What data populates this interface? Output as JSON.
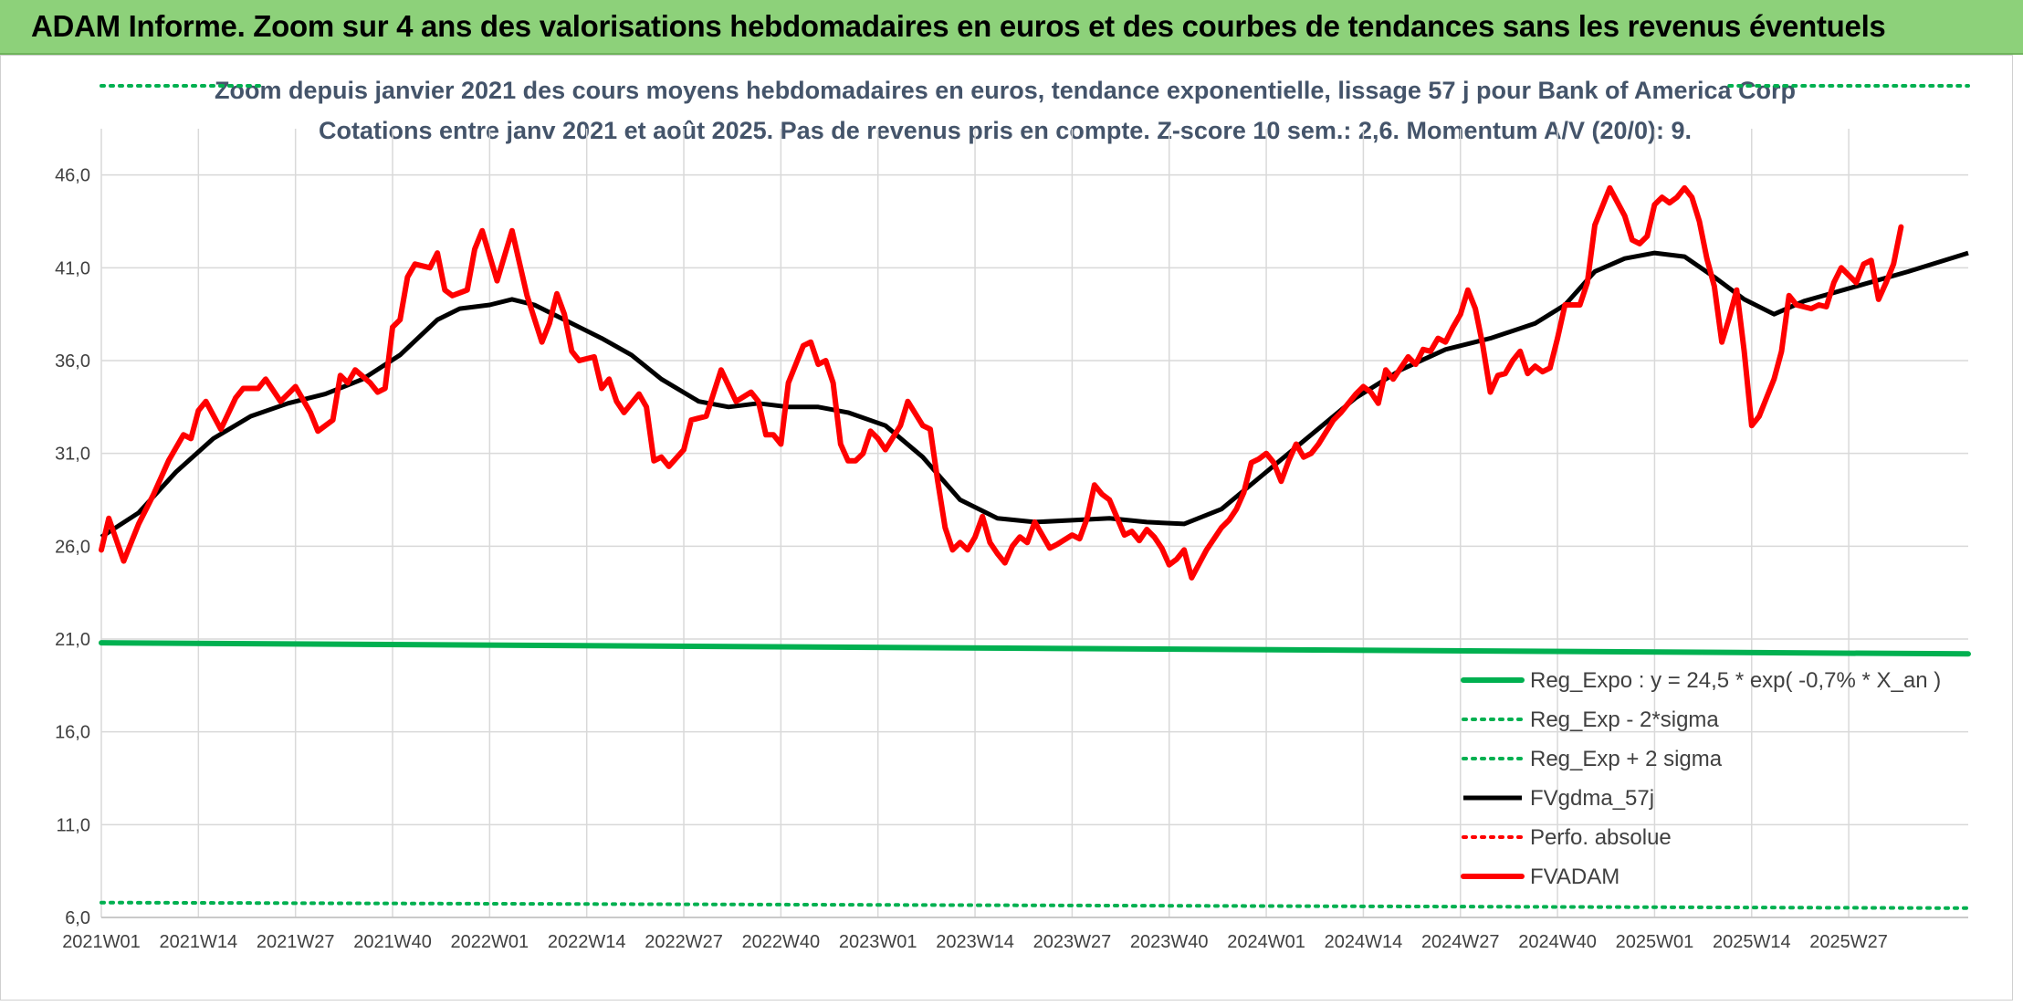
{
  "banner": {
    "title": "ADAM Informe. Zoom sur 4 ans des valorisations hebdomadaires en euros et des courbes de tendances sans les revenus éventuels"
  },
  "chart_data": {
    "type": "line",
    "title": "Zoom depuis janvier 2021 des cours moyens hebdomadaires en euros, tendance exponentielle, lissage 57 j pour Bank of America Corp",
    "subtitle": "Cotations entre janv 2021 et août 2025. Pas de revenus pris en compte. Z-score 10 sem.: 2,6. Momentum A/V (20/0): 9.",
    "xlabel": "",
    "ylabel": "",
    "ylim": [
      6,
      48
    ],
    "yticks": [
      "6,0",
      "11,0",
      "16,0",
      "21,0",
      "26,0",
      "31,0",
      "36,0",
      "41,0",
      "46,0"
    ],
    "ytick_values": [
      6,
      11,
      16,
      21,
      26,
      31,
      36,
      41,
      46
    ],
    "x_start_index": 0,
    "x_end_index": 250,
    "xticks": [
      "2021W01",
      "2021W14",
      "2021W27",
      "2021W40",
      "2022W01",
      "2022W14",
      "2022W27",
      "2022W40",
      "2023W01",
      "2023W14",
      "2023W27",
      "2023W40",
      "2024W01",
      "2024W14",
      "2024W27",
      "2024W40",
      "2025W01",
      "2025W14",
      "2025W27"
    ],
    "grid": true,
    "legend_position": "bottom-right",
    "series": [
      {
        "name": "Reg_Expo : y = 24,5 * exp( -0,7% *  X_an )",
        "color": "#00b050",
        "style": "solid-thick",
        "points": [
          [
            0,
            20.8
          ],
          [
            250,
            20.2
          ]
        ]
      },
      {
        "name": "Reg_Exp - 2*sigma",
        "color": "#00b050",
        "style": "dotted",
        "points": [
          [
            0,
            6.8
          ],
          [
            250,
            6.5
          ]
        ]
      },
      {
        "name": "Reg_Exp + 2 sigma",
        "color": "#00b050",
        "style": "dotted",
        "points": [
          [
            0,
            49.5
          ],
          [
            22,
            49.5
          ],
          [
            218,
            49.5
          ],
          [
            250,
            49.5
          ]
        ]
      },
      {
        "name": "FVgdma_57j",
        "color": "#000000",
        "style": "solid",
        "points": [
          [
            0,
            26.5
          ],
          [
            5,
            27.8
          ],
          [
            10,
            30.0
          ],
          [
            15,
            31.8
          ],
          [
            20,
            33.0
          ],
          [
            25,
            33.7
          ],
          [
            30,
            34.2
          ],
          [
            35,
            35.0
          ],
          [
            40,
            36.3
          ],
          [
            45,
            38.2
          ],
          [
            48,
            38.8
          ],
          [
            52,
            39.0
          ],
          [
            55,
            39.3
          ],
          [
            58,
            39.0
          ],
          [
            62,
            38.2
          ],
          [
            67,
            37.2
          ],
          [
            71,
            36.3
          ],
          [
            75,
            35.0
          ],
          [
            80,
            33.8
          ],
          [
            84,
            33.5
          ],
          [
            88,
            33.7
          ],
          [
            92,
            33.5
          ],
          [
            96,
            33.5
          ],
          [
            100,
            33.2
          ],
          [
            105,
            32.5
          ],
          [
            110,
            30.8
          ],
          [
            115,
            28.5
          ],
          [
            120,
            27.5
          ],
          [
            125,
            27.3
          ],
          [
            130,
            27.4
          ],
          [
            135,
            27.5
          ],
          [
            140,
            27.3
          ],
          [
            145,
            27.2
          ],
          [
            150,
            28.0
          ],
          [
            156,
            30.0
          ],
          [
            162,
            32.0
          ],
          [
            168,
            34.0
          ],
          [
            174,
            35.5
          ],
          [
            180,
            36.6
          ],
          [
            186,
            37.2
          ],
          [
            192,
            38.0
          ],
          [
            196,
            39.0
          ],
          [
            200,
            40.8
          ],
          [
            204,
            41.5
          ],
          [
            208,
            41.8
          ],
          [
            212,
            41.6
          ],
          [
            216,
            40.5
          ],
          [
            220,
            39.3
          ],
          [
            224,
            38.5
          ],
          [
            228,
            39.2
          ],
          [
            235,
            40.0
          ],
          [
            242,
            40.8
          ],
          [
            250,
            41.8
          ]
        ]
      },
      {
        "name": "Perfo. absolue",
        "color": "#ff0000",
        "style": "dotted",
        "points": []
      },
      {
        "name": "FVADAM",
        "color": "#ff0000",
        "style": "solid-thick",
        "points": [
          [
            0,
            25.8
          ],
          [
            1,
            27.5
          ],
          [
            3,
            25.2
          ],
          [
            5,
            27.2
          ],
          [
            7,
            28.8
          ],
          [
            9,
            30.6
          ],
          [
            11,
            32.0
          ],
          [
            12,
            31.8
          ],
          [
            13,
            33.3
          ],
          [
            14,
            33.8
          ],
          [
            16,
            32.3
          ],
          [
            18,
            34.0
          ],
          [
            19,
            34.5
          ],
          [
            21,
            34.5
          ],
          [
            22,
            35.0
          ],
          [
            24,
            33.8
          ],
          [
            26,
            34.6
          ],
          [
            28,
            33.2
          ],
          [
            29,
            32.2
          ],
          [
            31,
            32.8
          ],
          [
            32,
            35.2
          ],
          [
            33,
            34.8
          ],
          [
            34,
            35.5
          ],
          [
            36,
            34.8
          ],
          [
            37,
            34.3
          ],
          [
            38,
            34.5
          ],
          [
            39,
            37.8
          ],
          [
            40,
            38.2
          ],
          [
            41,
            40.5
          ],
          [
            42,
            41.2
          ],
          [
            44,
            41.0
          ],
          [
            45,
            41.8
          ],
          [
            46,
            39.8
          ],
          [
            47,
            39.5
          ],
          [
            49,
            39.8
          ],
          [
            50,
            42.0
          ],
          [
            51,
            43.0
          ],
          [
            53,
            40.3
          ],
          [
            55,
            43.0
          ],
          [
            57,
            39.5
          ],
          [
            59,
            37.0
          ],
          [
            60,
            38.0
          ],
          [
            61,
            39.6
          ],
          [
            62,
            38.5
          ],
          [
            63,
            36.5
          ],
          [
            64,
            36.0
          ],
          [
            66,
            36.2
          ],
          [
            67,
            34.5
          ],
          [
            68,
            35.0
          ],
          [
            69,
            33.8
          ],
          [
            70,
            33.2
          ],
          [
            72,
            34.2
          ],
          [
            73,
            33.5
          ],
          [
            74,
            30.6
          ],
          [
            75,
            30.8
          ],
          [
            76,
            30.3
          ],
          [
            78,
            31.2
          ],
          [
            79,
            32.8
          ],
          [
            81,
            33.0
          ],
          [
            83,
            35.5
          ],
          [
            85,
            33.8
          ],
          [
            87,
            34.3
          ],
          [
            88,
            33.8
          ],
          [
            89,
            32.0
          ],
          [
            90,
            32.0
          ],
          [
            91,
            31.5
          ],
          [
            92,
            34.8
          ],
          [
            94,
            36.8
          ],
          [
            95,
            37.0
          ],
          [
            96,
            35.8
          ],
          [
            97,
            36.0
          ],
          [
            98,
            34.8
          ],
          [
            99,
            31.5
          ],
          [
            100,
            30.6
          ],
          [
            101,
            30.6
          ],
          [
            102,
            31.0
          ],
          [
            103,
            32.2
          ],
          [
            104,
            31.8
          ],
          [
            105,
            31.2
          ],
          [
            107,
            32.5
          ],
          [
            108,
            33.8
          ],
          [
            110,
            32.5
          ],
          [
            111,
            32.3
          ],
          [
            112,
            29.5
          ],
          [
            113,
            27.0
          ],
          [
            114,
            25.8
          ],
          [
            115,
            26.2
          ],
          [
            116,
            25.8
          ],
          [
            117,
            26.5
          ],
          [
            118,
            27.6
          ],
          [
            119,
            26.2
          ],
          [
            120,
            25.6
          ],
          [
            121,
            25.1
          ],
          [
            122,
            26.0
          ],
          [
            123,
            26.5
          ],
          [
            124,
            26.2
          ],
          [
            125,
            27.3
          ],
          [
            127,
            25.9
          ],
          [
            128,
            26.1
          ],
          [
            130,
            26.6
          ],
          [
            131,
            26.4
          ],
          [
            132,
            27.5
          ],
          [
            133,
            29.3
          ],
          [
            134,
            28.8
          ],
          [
            135,
            28.5
          ],
          [
            137,
            26.6
          ],
          [
            138,
            26.8
          ],
          [
            139,
            26.3
          ],
          [
            140,
            26.9
          ],
          [
            141,
            26.5
          ],
          [
            142,
            25.9
          ],
          [
            143,
            25.0
          ],
          [
            144,
            25.3
          ],
          [
            145,
            25.8
          ],
          [
            146,
            24.3
          ],
          [
            148,
            25.8
          ],
          [
            150,
            27.0
          ],
          [
            151,
            27.4
          ],
          [
            152,
            28.0
          ],
          [
            153,
            28.9
          ],
          [
            154,
            30.5
          ],
          [
            155,
            30.7
          ],
          [
            156,
            31.0
          ],
          [
            157,
            30.5
          ],
          [
            158,
            29.5
          ],
          [
            159,
            30.6
          ],
          [
            160,
            31.5
          ],
          [
            161,
            30.8
          ],
          [
            162,
            31.0
          ],
          [
            163,
            31.5
          ],
          [
            165,
            32.8
          ],
          [
            166,
            33.2
          ],
          [
            168,
            34.2
          ],
          [
            169,
            34.6
          ],
          [
            170,
            34.3
          ],
          [
            171,
            33.7
          ],
          [
            172,
            35.5
          ],
          [
            173,
            35.0
          ],
          [
            175,
            36.2
          ],
          [
            176,
            35.8
          ],
          [
            177,
            36.6
          ],
          [
            178,
            36.5
          ],
          [
            179,
            37.2
          ],
          [
            180,
            37.0
          ],
          [
            181,
            37.8
          ],
          [
            182,
            38.5
          ],
          [
            183,
            39.8
          ],
          [
            184,
            38.8
          ],
          [
            185,
            36.8
          ],
          [
            186,
            34.3
          ],
          [
            187,
            35.2
          ],
          [
            188,
            35.3
          ],
          [
            189,
            36.0
          ],
          [
            190,
            36.5
          ],
          [
            191,
            35.3
          ],
          [
            192,
            35.7
          ],
          [
            193,
            35.4
          ],
          [
            194,
            35.6
          ],
          [
            195,
            37.2
          ],
          [
            196,
            39.0
          ],
          [
            197,
            39.0
          ],
          [
            198,
            39.0
          ],
          [
            199,
            40.2
          ],
          [
            200,
            43.3
          ],
          [
            202,
            45.3
          ],
          [
            204,
            43.8
          ],
          [
            205,
            42.5
          ],
          [
            206,
            42.3
          ],
          [
            207,
            42.7
          ],
          [
            208,
            44.4
          ],
          [
            209,
            44.8
          ],
          [
            210,
            44.5
          ],
          [
            211,
            44.8
          ],
          [
            212,
            45.3
          ],
          [
            213,
            44.8
          ],
          [
            214,
            43.5
          ],
          [
            215,
            41.5
          ],
          [
            216,
            40.0
          ],
          [
            217,
            37.0
          ],
          [
            218,
            38.3
          ],
          [
            219,
            39.8
          ],
          [
            220,
            36.5
          ],
          [
            221,
            32.5
          ],
          [
            222,
            33.0
          ],
          [
            223,
            34.0
          ],
          [
            224,
            35.0
          ],
          [
            225,
            36.5
          ],
          [
            226,
            39.5
          ],
          [
            227,
            39.0
          ],
          [
            229,
            38.8
          ],
          [
            230,
            39.0
          ],
          [
            231,
            38.9
          ],
          [
            232,
            40.2
          ],
          [
            233,
            41.0
          ],
          [
            234,
            40.6
          ],
          [
            235,
            40.2
          ],
          [
            236,
            41.2
          ],
          [
            237,
            41.4
          ],
          [
            238,
            39.3
          ],
          [
            239,
            40.2
          ],
          [
            240,
            41.2
          ],
          [
            241,
            43.2
          ]
        ]
      }
    ]
  }
}
